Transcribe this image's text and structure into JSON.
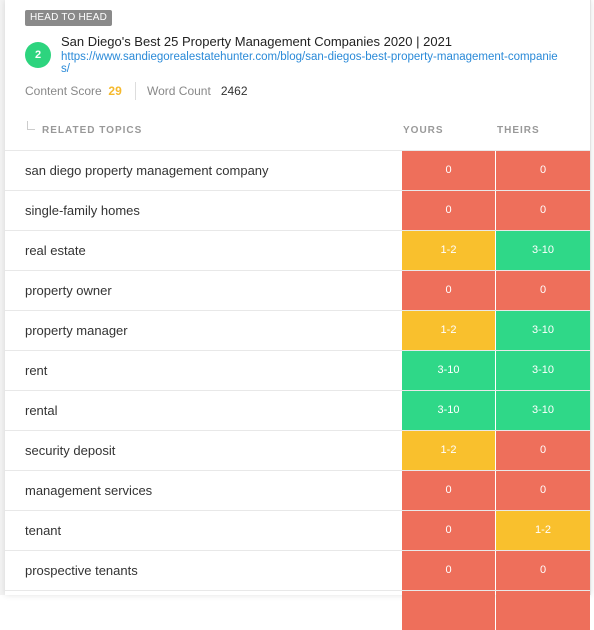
{
  "header": {
    "badge": "HEAD TO HEAD",
    "rank": "2",
    "title": "San Diego's Best 25 Property Management Companies 2020 | 2021",
    "url": "https://www.sandiegorealestatehunter.com/blog/san-diegos-best-property-management-companies/",
    "content_score_label": "Content Score",
    "content_score": "29",
    "word_count_label": "Word Count",
    "word_count": "2462"
  },
  "columns": {
    "topics": "RELATED TOPICS",
    "yours": "YOURS",
    "theirs": "THEIRS"
  },
  "colors": {
    "red": "#ee6f5b",
    "green": "#2fd888",
    "yellow": "#f9c02d",
    "accent": "#2dd47e",
    "link": "#2a8ad8"
  },
  "rows": [
    {
      "topic": "san diego property management company",
      "yours": "0",
      "theirs": "0",
      "yours_color": "red",
      "theirs_color": "red"
    },
    {
      "topic": "single-family homes",
      "yours": "0",
      "theirs": "0",
      "yours_color": "red",
      "theirs_color": "red"
    },
    {
      "topic": "real estate",
      "yours": "1-2",
      "theirs": "3-10",
      "yours_color": "yellow",
      "theirs_color": "green"
    },
    {
      "topic": "property owner",
      "yours": "0",
      "theirs": "0",
      "yours_color": "red",
      "theirs_color": "red"
    },
    {
      "topic": "property manager",
      "yours": "1-2",
      "theirs": "3-10",
      "yours_color": "yellow",
      "theirs_color": "green"
    },
    {
      "topic": "rent",
      "yours": "3-10",
      "theirs": "3-10",
      "yours_color": "green",
      "theirs_color": "green"
    },
    {
      "topic": "rental",
      "yours": "3-10",
      "theirs": "3-10",
      "yours_color": "green",
      "theirs_color": "green"
    },
    {
      "topic": "security deposit",
      "yours": "1-2",
      "theirs": "0",
      "yours_color": "yellow",
      "theirs_color": "red"
    },
    {
      "topic": "management services",
      "yours": "0",
      "theirs": "0",
      "yours_color": "red",
      "theirs_color": "red"
    },
    {
      "topic": "tenant",
      "yours": "0",
      "theirs": "1-2",
      "yours_color": "red",
      "theirs_color": "yellow"
    },
    {
      "topic": "prospective tenants",
      "yours": "0",
      "theirs": "0",
      "yours_color": "red",
      "theirs_color": "red"
    },
    {
      "topic": "",
      "yours": "",
      "theirs": "",
      "yours_color": "red",
      "theirs_color": "red"
    }
  ]
}
